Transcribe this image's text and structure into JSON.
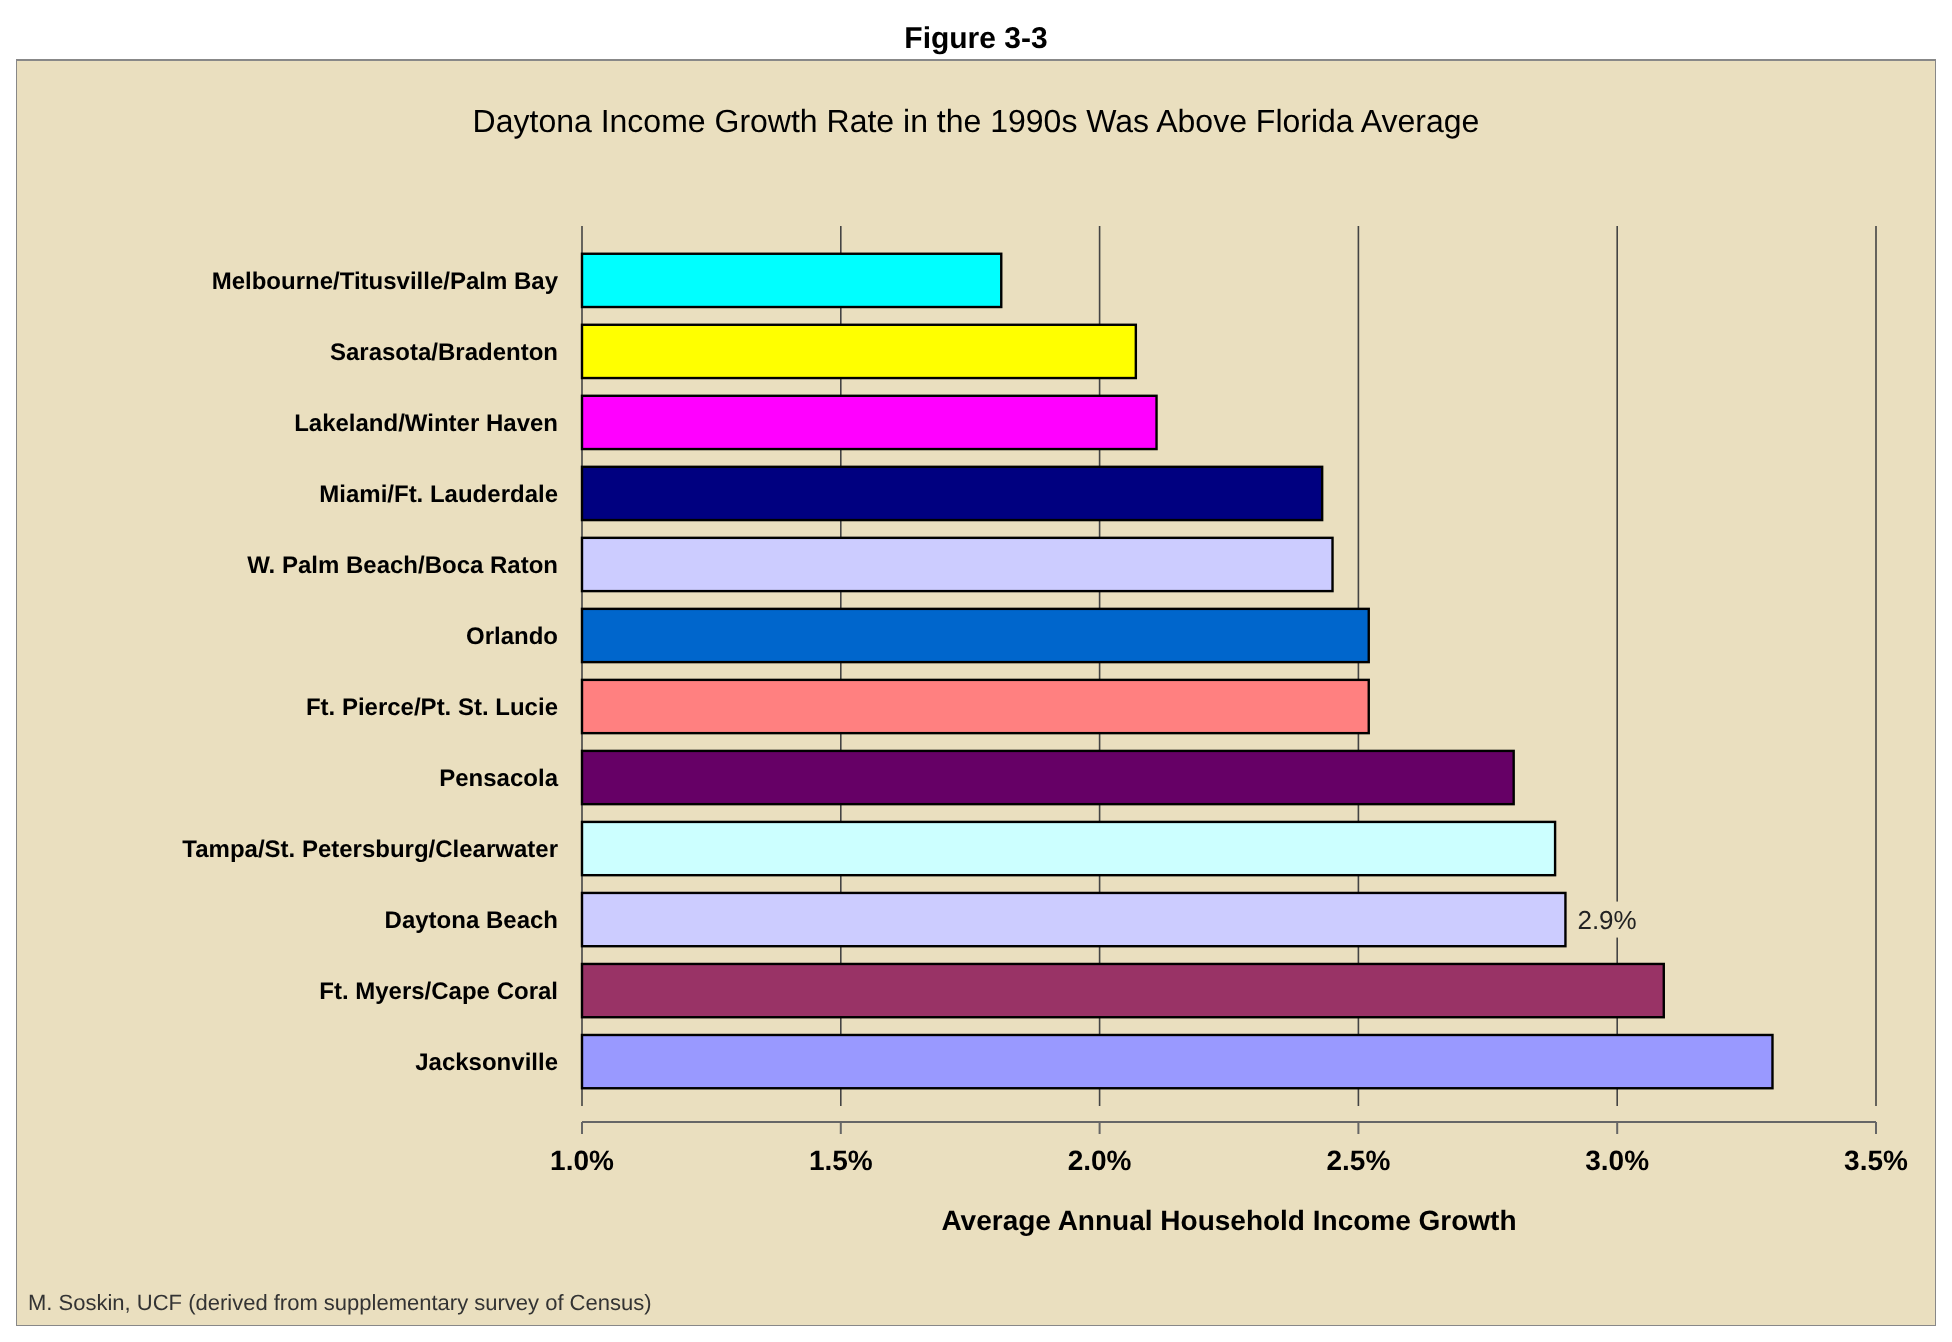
{
  "chart_data": {
    "type": "bar",
    "orientation": "horizontal",
    "title": "Figure 3-3",
    "subtitle": "Daytona Income Growth Rate in the 1990s Was Above Florida Average",
    "xlabel": "Average Annual Household Income Growth",
    "categories": [
      "Melbourne/Titusville/Palm Bay",
      "Sarasota/Bradenton",
      "Lakeland/Winter Haven",
      "Miami/Ft. Lauderdale",
      "W. Palm Beach/Boca Raton",
      "Orlando",
      "Ft. Pierce/Pt. St. Lucie",
      "Pensacola",
      "Tampa/St. Petersburg/Clearwater",
      "Daytona Beach",
      "Ft. Myers/Cape Coral",
      "Jacksonville"
    ],
    "values": [
      1.81,
      2.07,
      2.11,
      2.43,
      2.45,
      2.52,
      2.52,
      2.8,
      2.88,
      2.9,
      3.09,
      3.3
    ],
    "colors": [
      "#00ffff",
      "#ffff00",
      "#ff00ff",
      "#000080",
      "#ccccff",
      "#0066cc",
      "#ff8080",
      "#660066",
      "#ccffff",
      "#ccccff",
      "#993366",
      "#9999ff"
    ],
    "value_labels": [
      null,
      null,
      null,
      null,
      null,
      null,
      null,
      null,
      null,
      "2.9%",
      null,
      null
    ],
    "xlim": [
      1.0,
      3.5
    ],
    "xticks": [
      {
        "value": 1.0,
        "label": "1.0%"
      },
      {
        "value": 1.5,
        "label": "1.5%"
      },
      {
        "value": 2.0,
        "label": "2.0%"
      },
      {
        "value": 2.5,
        "label": "2.5%"
      },
      {
        "value": 3.0,
        "label": "3.0%"
      },
      {
        "value": 3.5,
        "label": "3.5%"
      }
    ],
    "grid": "x",
    "annotations": [
      "M. Soskin, UCF (derived from supplementary survey of Census)"
    ]
  }
}
